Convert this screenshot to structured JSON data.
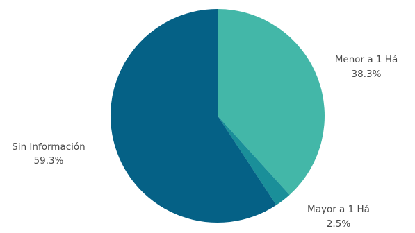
{
  "chart_data": {
    "type": "pie",
    "slices": [
      {
        "label": "Menor a 1 Há",
        "value": 38.3,
        "value_label": "38.3%",
        "color": "#43b7a8"
      },
      {
        "label": "Mayor a 1 Há",
        "value": 2.5,
        "value_label": "2.5%",
        "color": "#1a8f99"
      },
      {
        "label": "Sin Información",
        "value": 59.3,
        "value_label": "59.3%",
        "color": "#056186"
      }
    ],
    "start": "top",
    "direction": "clockwise",
    "legend": "none"
  }
}
